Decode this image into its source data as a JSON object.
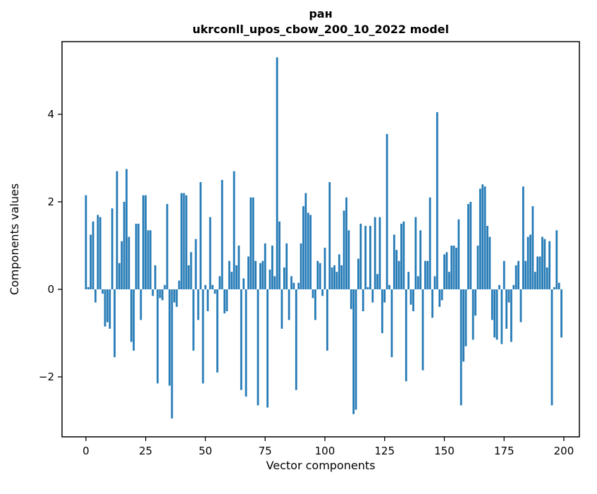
{
  "chart_data": {
    "type": "bar",
    "title": "ран\nukrconll_upos_cbow_200_10_2022 model",
    "title_lines": [
      "ран",
      "ukrconll_upos_cbow_200_10_2022 model"
    ],
    "xlabel": "Vector components",
    "ylabel": "Components values",
    "bar_color": "#1f77b4",
    "grid": false,
    "legend": "none",
    "xticks": [
      0,
      25,
      50,
      75,
      100,
      125,
      150,
      175,
      200
    ],
    "yticks": [
      -2,
      0,
      2,
      4
    ],
    "xlim": [
      -10,
      206.5
    ],
    "ylim": [
      -3.37,
      5.66
    ],
    "x_range": [
      0,
      199
    ],
    "values": [
      2.15,
      0.05,
      1.25,
      1.55,
      -0.3,
      1.7,
      1.65,
      -0.1,
      -0.85,
      -0.75,
      -0.9,
      1.85,
      -1.55,
      2.7,
      0.6,
      1.1,
      2.0,
      2.75,
      1.2,
      -1.2,
      -1.4,
      1.5,
      1.5,
      -0.7,
      2.15,
      2.15,
      1.35,
      1.35,
      -0.15,
      0.55,
      -2.15,
      -0.2,
      -0.25,
      0.1,
      1.95,
      -2.2,
      -2.95,
      -0.3,
      -0.4,
      0.2,
      2.2,
      2.2,
      2.15,
      0.55,
      0.85,
      -1.4,
      1.15,
      -0.7,
      2.45,
      -2.15,
      0.1,
      -0.5,
      1.65,
      0.1,
      -0.1,
      -1.9,
      0.3,
      2.5,
      -0.55,
      -0.5,
      0.65,
      0.4,
      2.7,
      0.55,
      1.0,
      -2.3,
      0.25,
      -2.45,
      0.75,
      2.1,
      2.1,
      0.65,
      -2.65,
      0.6,
      0.65,
      1.05,
      -2.7,
      0.45,
      1.0,
      0.3,
      5.3,
      1.55,
      -0.9,
      0.5,
      1.05,
      -0.7,
      0.3,
      0.15,
      -2.3,
      0.15,
      1.05,
      1.9,
      2.2,
      1.75,
      1.7,
      -0.2,
      -0.7,
      0.65,
      0.6,
      -0.15,
      0.95,
      -1.4,
      2.45,
      0.5,
      0.55,
      0.4,
      0.8,
      0.55,
      1.8,
      2.1,
      1.35,
      -0.45,
      -2.85,
      -2.75,
      0.7,
      1.5,
      -0.5,
      1.45,
      0.05,
      1.45,
      -0.3,
      1.65,
      0.35,
      1.65,
      -1.0,
      -0.3,
      3.55,
      0.1,
      -1.55,
      1.25,
      0.9,
      0.65,
      1.5,
      1.55,
      -2.1,
      0.4,
      -0.35,
      -0.5,
      1.65,
      0.3,
      1.35,
      -1.85,
      0.65,
      0.65,
      2.1,
      -0.65,
      0.3,
      4.05,
      -0.4,
      -0.25,
      0.8,
      0.85,
      0.4,
      1.0,
      1.0,
      0.95,
      1.6,
      -2.65,
      -1.65,
      -1.3,
      1.95,
      2.0,
      -1.15,
      -0.6,
      1.0,
      2.3,
      2.4,
      2.35,
      1.45,
      1.2,
      -0.7,
      -1.1,
      -1.15,
      0.1,
      -1.25,
      0.65,
      -0.9,
      -0.3,
      -1.2,
      0.1,
      0.55,
      0.65,
      -0.75,
      2.35,
      0.65,
      1.2,
      1.25,
      1.9,
      0.4,
      0.75,
      0.75,
      1.2,
      1.15,
      0.5,
      1.1,
      -2.65,
      0.05,
      1.35,
      0.15,
      -1.1
    ]
  }
}
